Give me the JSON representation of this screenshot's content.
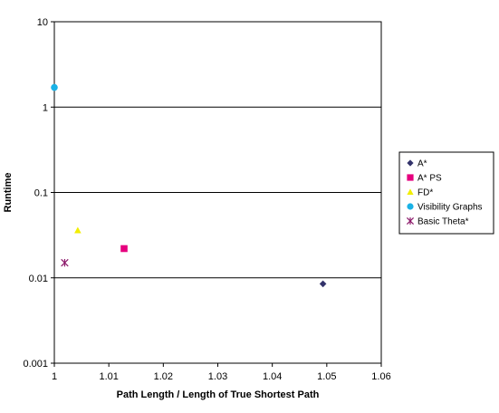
{
  "chart_data": {
    "type": "scatter",
    "xlabel": "Path Length / Length of True Shortest Path",
    "ylabel": "Runtime",
    "xlim": [
      1,
      1.06
    ],
    "ylim": [
      0.001,
      10
    ],
    "y_scale": "log",
    "x_ticks": [
      "1",
      "1.01",
      "1.02",
      "1.03",
      "1.04",
      "1.05",
      "1.06"
    ],
    "y_ticks": [
      "10",
      "1",
      "0.1",
      "0.01",
      "0.001"
    ],
    "grid": "horizontal",
    "legend_position": "right",
    "series": [
      {
        "name": "A*",
        "marker": "diamond",
        "color": "#33336b",
        "points": [
          {
            "x": 1.0493,
            "y": 0.0085
          }
        ]
      },
      {
        "name": "A* PS",
        "marker": "square",
        "color": "#e6007e",
        "points": [
          {
            "x": 1.0128,
            "y": 0.022
          }
        ]
      },
      {
        "name": "FD*",
        "marker": "triangle",
        "color": "#f2ee00",
        "points": [
          {
            "x": 1.0043,
            "y": 0.036
          }
        ]
      },
      {
        "name": "Visibility Graphs",
        "marker": "circle",
        "color": "#1ab2e6",
        "points": [
          {
            "x": 1.0,
            "y": 1.7
          }
        ]
      },
      {
        "name": "Basic Theta*",
        "marker": "star",
        "color": "#8c1a6b",
        "points": [
          {
            "x": 1.0019,
            "y": 0.015
          }
        ]
      }
    ]
  }
}
